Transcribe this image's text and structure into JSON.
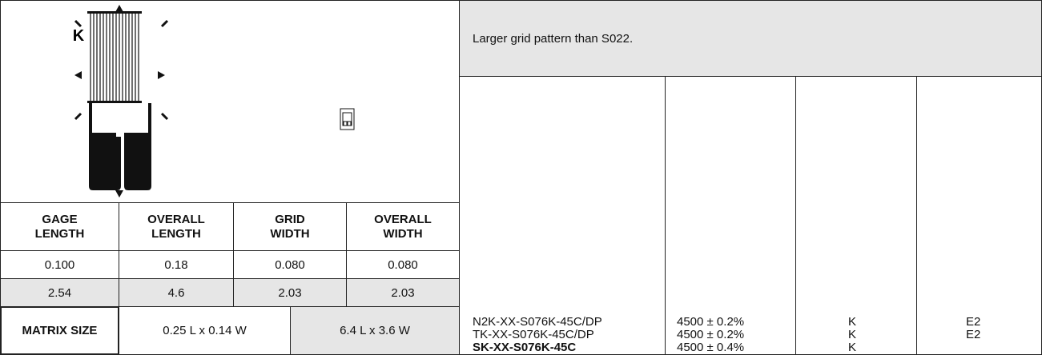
{
  "description": "Larger grid pattern than S022.",
  "gage_label": "K",
  "dimensions": {
    "headers": [
      "GAGE LENGTH",
      "OVERALL LENGTH",
      "GRID WIDTH",
      "OVERALL WIDTH"
    ],
    "rows": [
      [
        "0.100",
        "0.18",
        "0.080",
        "0.080"
      ],
      [
        "2.54",
        "4.6",
        "2.03",
        "2.03"
      ]
    ]
  },
  "matrix": {
    "label": "MATRIX SIZE",
    "inch": "0.25 L x 0.14 W",
    "mm": "6.4 L x 3.6 W"
  },
  "products": [
    {
      "part": "N2K-XX-S076K-45C/DP",
      "resistance": "4500 ± 0.2%",
      "alloy": "K",
      "option": "E2"
    },
    {
      "part": "TK-XX-S076K-45C/DP",
      "resistance": "4500 ± 0.2%",
      "alloy": "K",
      "option": "E2"
    },
    {
      "part": "SK-XX-S076K-45C",
      "resistance": "4500 ± 0.4%",
      "alloy": "K"
    }
  ]
}
